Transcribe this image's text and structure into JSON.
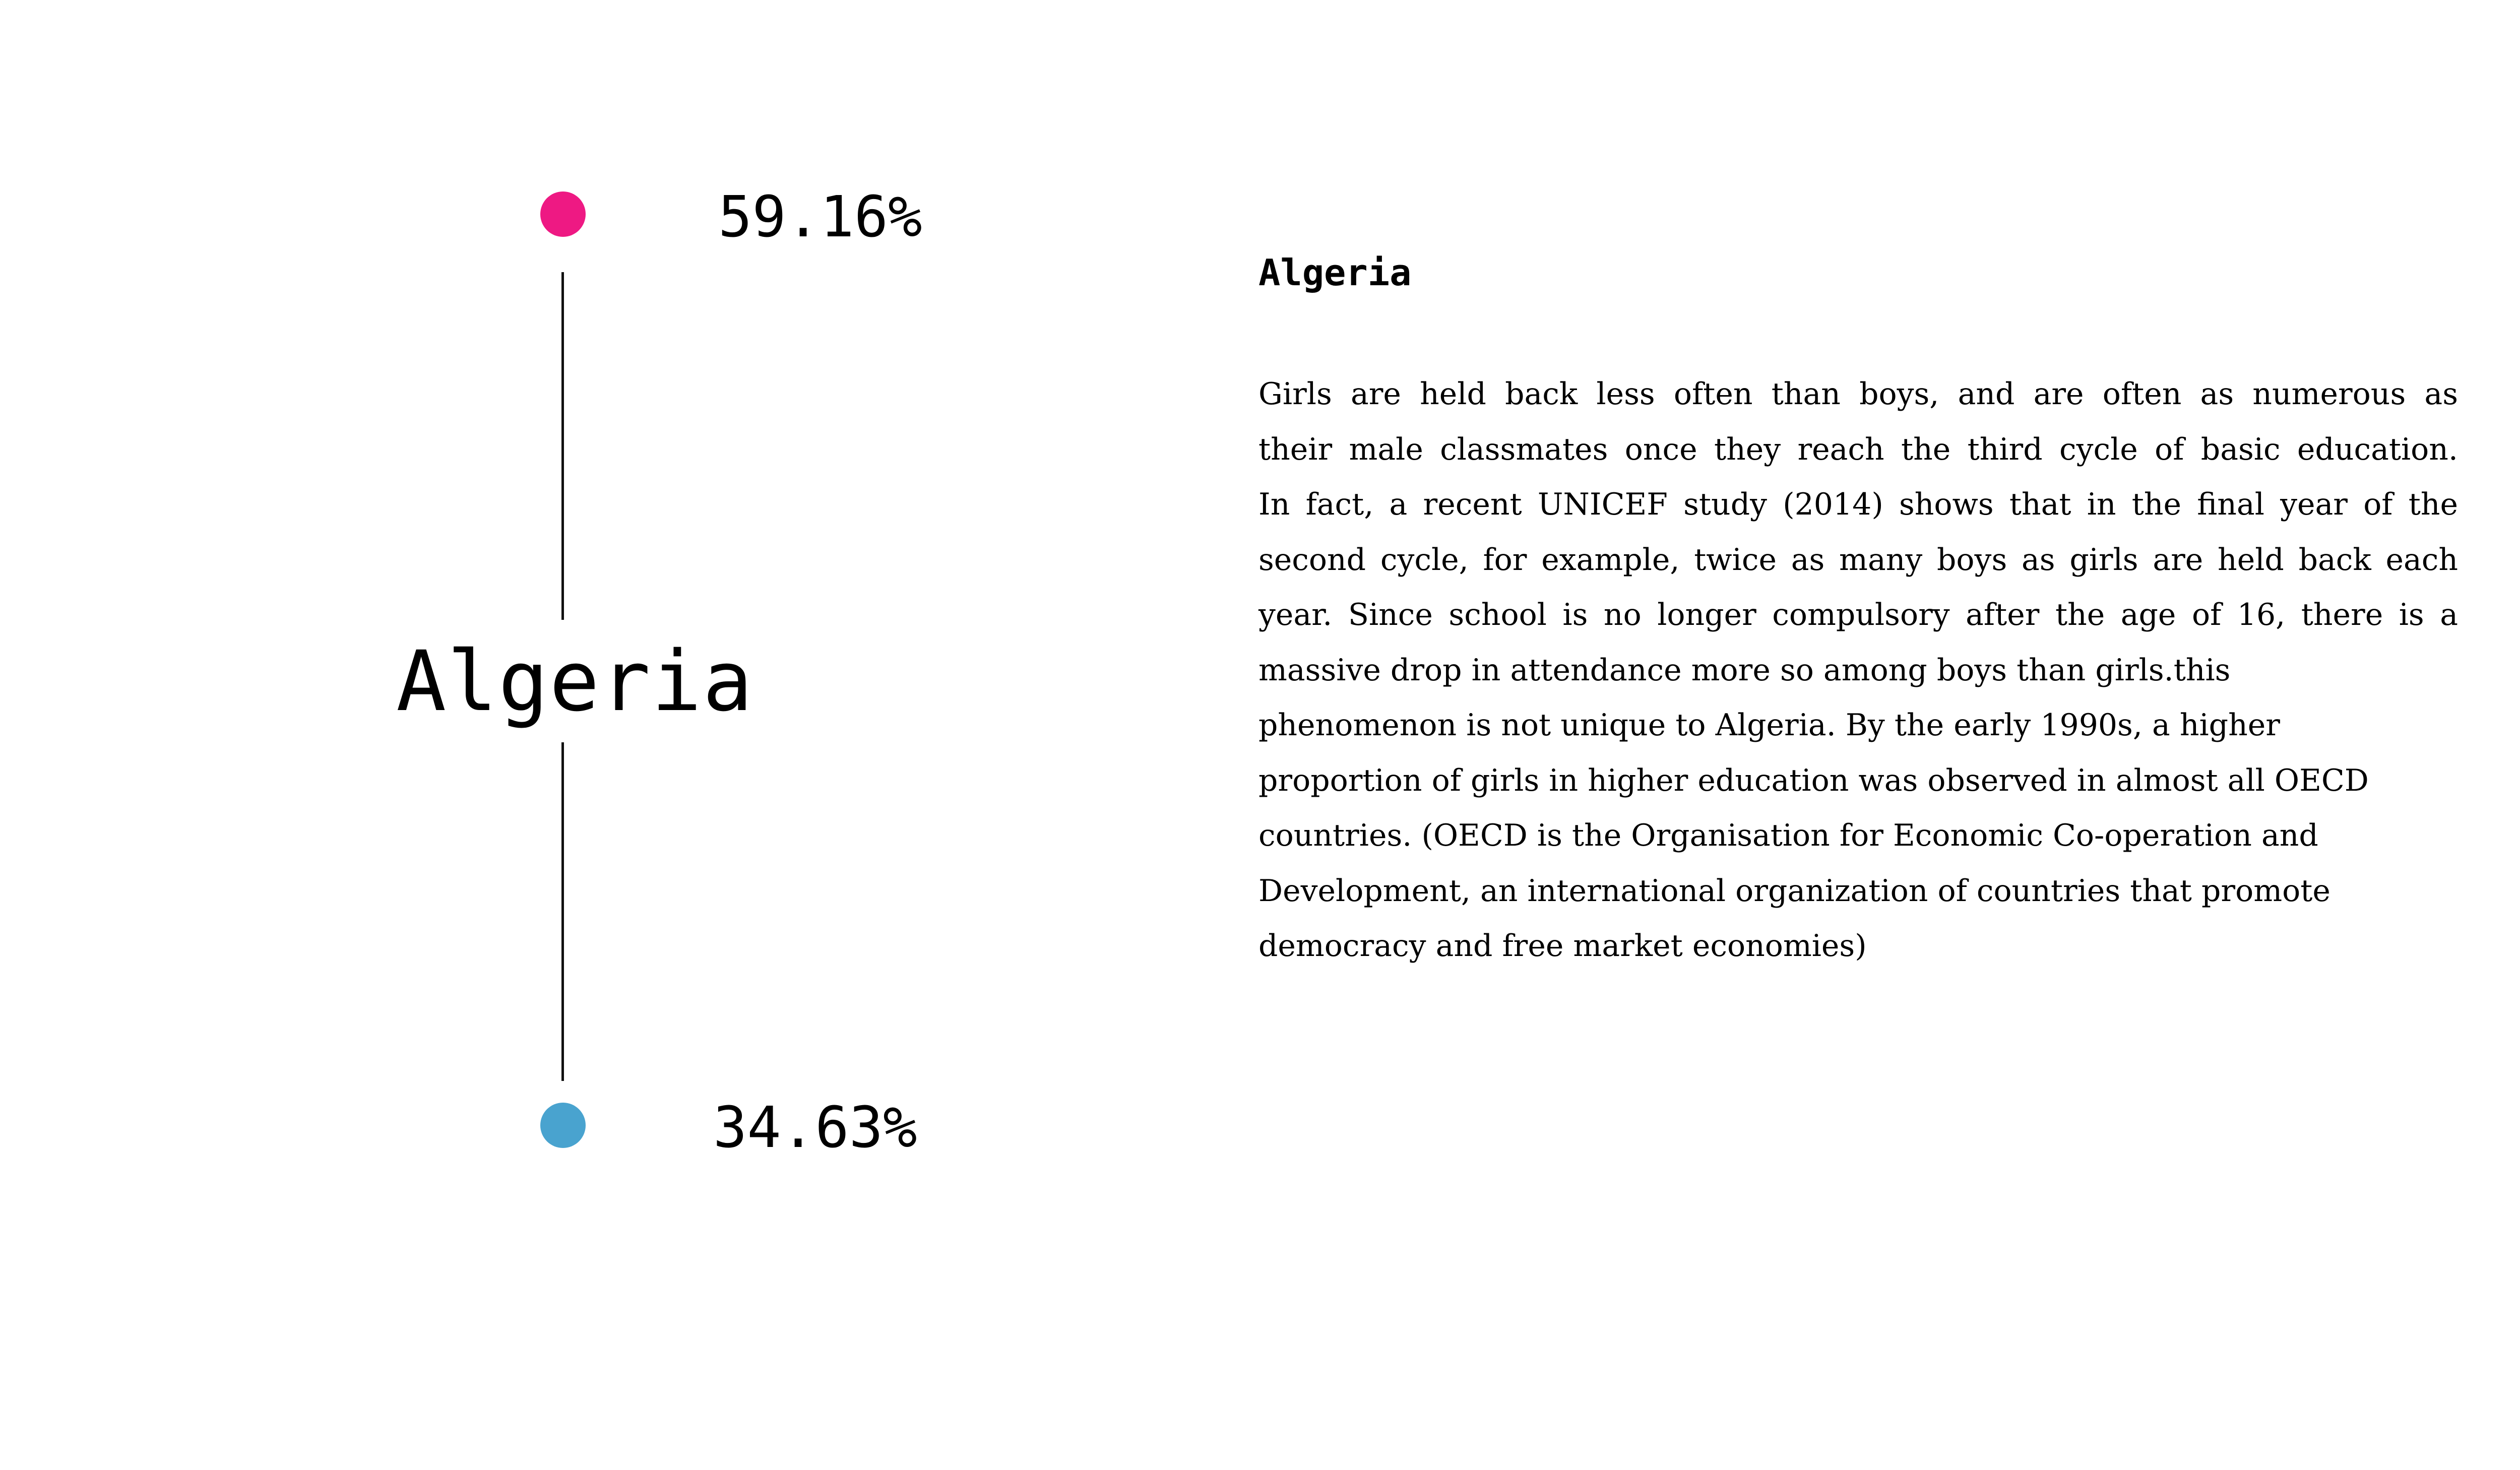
{
  "left": {
    "top_value": "59.16%",
    "country": "Algeria",
    "bottom_value": "34.63%"
  },
  "right": {
    "title": "Algeria",
    "lines": [
      "Girls are held back less often than boys, and are often as numerous as",
      "their male classmates once they reach the third cycle of basic education.",
      "In fact, a recent UNICEF study (2014) shows that in the final year of the",
      "second cycle, for example, twice as many boys as girls are held back each",
      "year. Since school is no longer compulsory after the age of 16, there is a",
      "massive drop in attendance more so among boys than girls.this",
      "phenomenon is not unique to Algeria. By the early 1990s, a higher",
      "proportion of girls in higher education was observed in almost all OECD",
      "countries. (OECD is the Organisation for Economic Co-operation and",
      "Development, an international organization of countries that promote",
      "democracy and free market economies)"
    ]
  },
  "colors": {
    "top_dot": "#ee1983",
    "bottom_dot": "#49a3cf",
    "connector": "#111111"
  }
}
